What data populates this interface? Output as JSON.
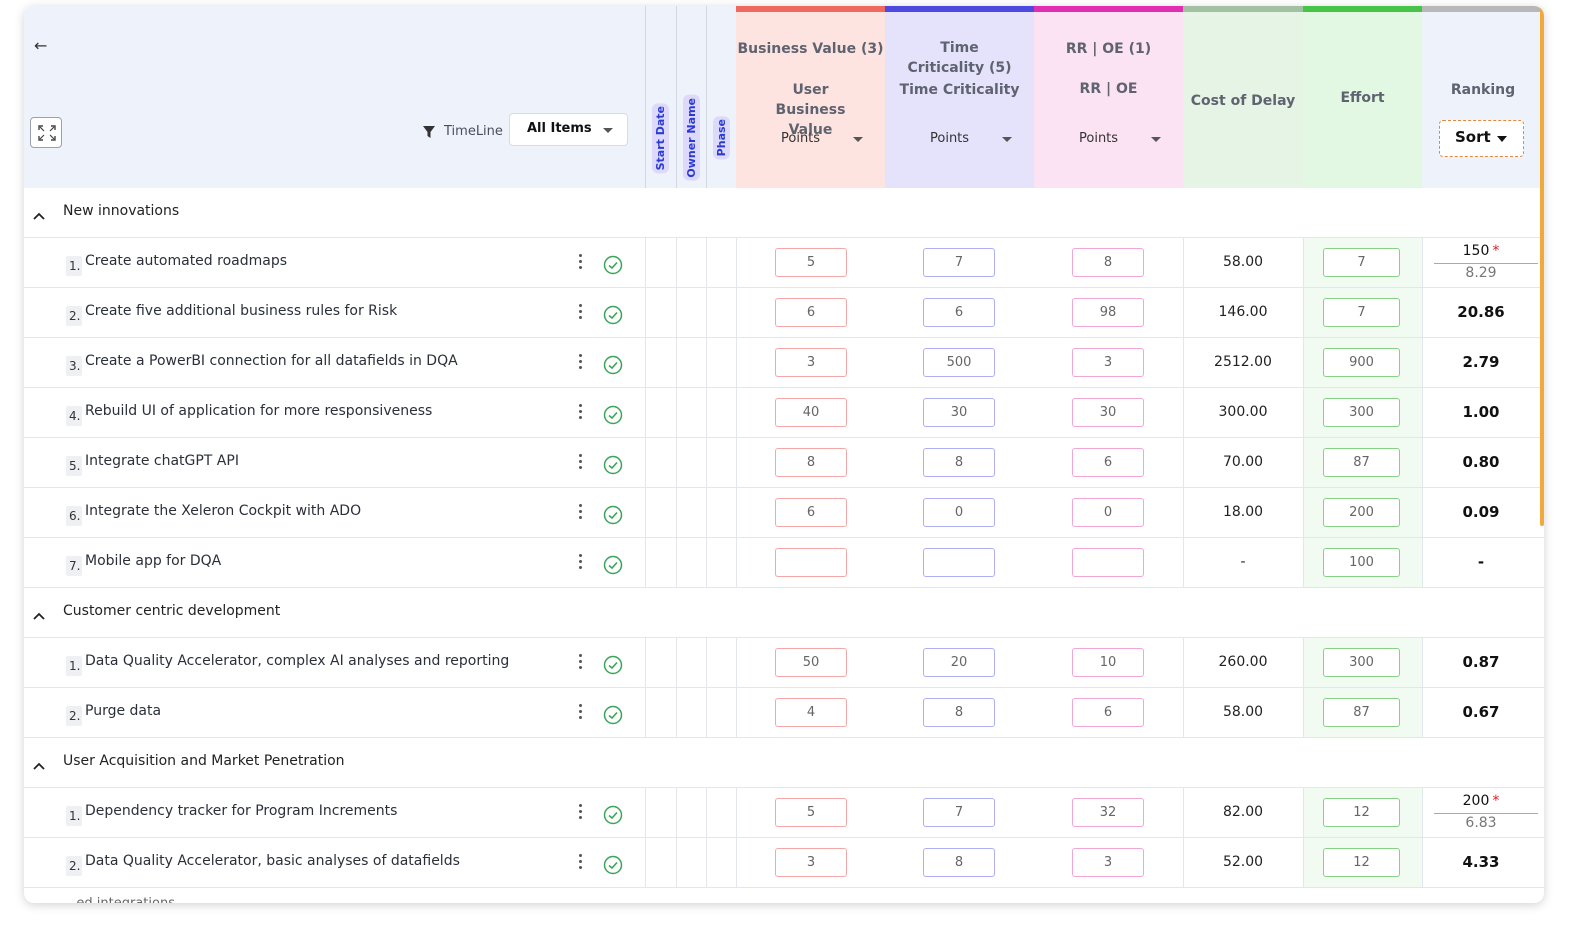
{
  "header": {
    "timeline_label": "TimeLine",
    "filter_value": "All Items",
    "vertical_tags": [
      "Start Date",
      "Owner Name",
      "Phase"
    ],
    "columns": {
      "business_value": {
        "title1": "Business Value (3)",
        "title2": "User Business Value",
        "points": "Points",
        "color": "#ef6a5e",
        "bg": "#fde4e1"
      },
      "time_criticality": {
        "title1": "Time Criticality (5)",
        "title2": "Time Criticality",
        "points": "Points",
        "color": "#4d4ae0",
        "bg": "#e4e3fb"
      },
      "rr_oe": {
        "title1": "RR | OE (1)",
        "title2": "RR | OE",
        "points": "Points",
        "color": "#e02fb2",
        "bg": "#fbe3f4"
      },
      "cost_of_delay": {
        "title": "Cost of Delay",
        "color": "#a2c0a2",
        "bg": "#e5f4e5"
      },
      "effort": {
        "title": "Effort",
        "color": "#47c447",
        "bg": "#e3f8e3"
      },
      "ranking": {
        "title": "Ranking",
        "sort_label": "Sort",
        "color": "#b8b8b8"
      }
    }
  },
  "groups": [
    {
      "title": "New innovations",
      "items": [
        {
          "num": "1.",
          "title": "Create automated roadmaps",
          "bv": "5",
          "tc": "7",
          "rr": "8",
          "cod": "58.00",
          "effort": "7",
          "rank_top": "150",
          "rank_bottom": "8.29",
          "starred": true
        },
        {
          "num": "2.",
          "title": "Create five additional business rules for Risk",
          "bv": "6",
          "tc": "6",
          "rr": "98",
          "cod": "146.00",
          "effort": "7",
          "rank": "20.86"
        },
        {
          "num": "3.",
          "title": "Create a PowerBI connection for all datafields in DQA",
          "bv": "3",
          "tc": "500",
          "rr": "3",
          "cod": "2512.00",
          "effort": "900",
          "rank": "2.79"
        },
        {
          "num": "4.",
          "title": "Rebuild UI of application for more responsiveness",
          "bv": "40",
          "tc": "30",
          "rr": "30",
          "cod": "300.00",
          "effort": "300",
          "rank": "1.00"
        },
        {
          "num": "5.",
          "title": "Integrate chatGPT API",
          "bv": "8",
          "tc": "8",
          "rr": "6",
          "cod": "70.00",
          "effort": "87",
          "rank": "0.80"
        },
        {
          "num": "6.",
          "title": "Integrate the Xeleron Cockpit with ADO",
          "bv": "6",
          "tc": "0",
          "rr": "0",
          "cod": "18.00",
          "effort": "200",
          "rank": "0.09"
        },
        {
          "num": "7.",
          "title": "Mobile app for DQA",
          "bv": "",
          "tc": "",
          "rr": "",
          "cod": "-",
          "effort": "100",
          "rank": "-"
        }
      ]
    },
    {
      "title": "Customer centric development",
      "items": [
        {
          "num": "1.",
          "title": "Data Quality Accelerator, complex AI analyses and reporting",
          "bv": "50",
          "tc": "20",
          "rr": "10",
          "cod": "260.00",
          "effort": "300",
          "rank": "0.87"
        },
        {
          "num": "2.",
          "title": "Purge data",
          "bv": "4",
          "tc": "8",
          "rr": "6",
          "cod": "58.00",
          "effort": "87",
          "rank": "0.67"
        }
      ]
    },
    {
      "title": "User Acquisition and Market Penetration",
      "items": [
        {
          "num": "1.",
          "title": "Dependency tracker for Program Increments",
          "bv": "5",
          "tc": "7",
          "rr": "32",
          "cod": "82.00",
          "effort": "12",
          "rank_top": "200",
          "rank_bottom": "6.83",
          "starred": true
        },
        {
          "num": "2.",
          "title": "Data Quality Accelerator, basic analyses of datafields",
          "bv": "3",
          "tc": "8",
          "rr": "3",
          "cod": "52.00",
          "effort": "12",
          "rank": "4.33"
        }
      ]
    }
  ],
  "partial_next_group": "...ed integrations"
}
